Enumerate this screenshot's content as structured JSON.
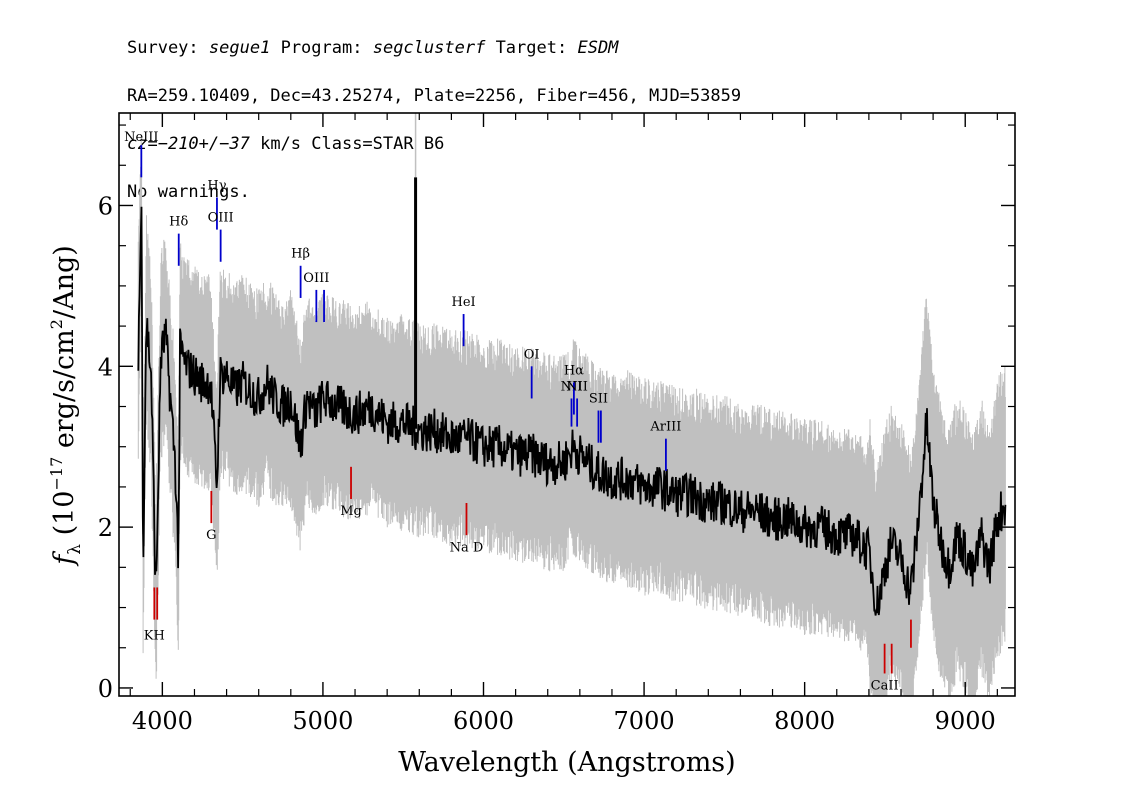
{
  "header": {
    "survey_label": "Survey:",
    "survey": "segue1",
    "program_label": "Program:",
    "program": "segclusterf",
    "target_label": "Target:",
    "target": "ESDM",
    "line2": "RA=259.10409, Dec=43.25274, Plate=2256, Fiber=456, MJD=53859",
    "cz_label": "cz=",
    "cz_value": "−210+/−37",
    "cz_rest": " km/s Class=STAR B6",
    "warnings": "No warnings."
  },
  "chart_data": {
    "type": "line",
    "title": "",
    "xlabel": "Wavelength (Angstroms)",
    "ylabel_prefix": "f",
    "ylabel_sub": "λ",
    "ylabel_main": " (10",
    "ylabel_exp": "−17",
    "ylabel_tail": " erg/s/cm",
    "ylabel_exp2": "2",
    "ylabel_end": "/Ang)",
    "xlim": [
      3730,
      9310
    ],
    "ylim": [
      -0.1,
      7.15
    ],
    "x_ticks": [
      4000,
      5000,
      6000,
      7000,
      8000,
      9000
    ],
    "x_tick_labels": [
      "4000",
      "5000",
      "6000",
      "7000",
      "8000",
      "9000"
    ],
    "y_ticks": [
      0,
      2,
      4,
      6
    ],
    "y_tick_labels": [
      "0",
      "2",
      "4",
      "6"
    ],
    "grid": false,
    "series": [
      {
        "role": "flux",
        "color": "#000000",
        "x": [
          3850,
          3870,
          3880,
          3900,
          3930,
          3960,
          3990,
          4020,
          4050,
          4080,
          4100,
          4110,
          4150,
          4200,
          4250,
          4300,
          4340,
          4360,
          4400,
          4450,
          4500,
          4550,
          4600,
          4650,
          4700,
          4750,
          4800,
          4860,
          4900,
          4950,
          5000,
          5100,
          5200,
          5300,
          5400,
          5500,
          5600,
          5700,
          5800,
          5900,
          6000,
          6100,
          6200,
          6300,
          6400,
          6500,
          6560,
          6600,
          6700,
          6800,
          6900,
          7000,
          7100,
          7200,
          7300,
          7400,
          7500,
          7600,
          7700,
          7800,
          7900,
          8000,
          8100,
          8200,
          8300,
          8400,
          8450,
          8500,
          8540,
          8600,
          8660,
          8700,
          8760,
          8800,
          8850,
          8900,
          8950,
          9000,
          9050,
          9100,
          9150,
          9200,
          9250
        ],
        "y": [
          4.2,
          6.0,
          1.5,
          4.6,
          3.9,
          1.1,
          4.1,
          4.4,
          3.6,
          2.8,
          1.6,
          4.2,
          4.0,
          3.9,
          3.8,
          3.8,
          2.5,
          3.9,
          3.9,
          3.7,
          3.8,
          3.7,
          3.6,
          3.8,
          3.6,
          3.5,
          3.6,
          3.0,
          3.6,
          3.4,
          3.6,
          3.5,
          3.4,
          3.5,
          3.3,
          3.3,
          3.2,
          3.2,
          3.1,
          3.1,
          3.0,
          3.0,
          2.9,
          2.9,
          2.8,
          2.8,
          3.0,
          2.9,
          2.7,
          2.6,
          2.6,
          2.5,
          2.5,
          2.4,
          2.4,
          2.3,
          2.3,
          2.2,
          2.2,
          2.1,
          2.1,
          2.0,
          2.0,
          1.9,
          1.9,
          1.7,
          1.0,
          1.5,
          1.8,
          1.6,
          1.2,
          1.9,
          3.3,
          2.3,
          1.8,
          1.5,
          1.9,
          1.7,
          1.4,
          1.9,
          1.5,
          2.1,
          2.3
        ]
      }
    ],
    "spike": {
      "x": 5577,
      "y": 6.35
    },
    "lines": [
      {
        "label": "NeIII",
        "x": 3869,
        "color": "#0000cc",
        "y0": 6.35,
        "y1": 6.75,
        "label_y": 6.8
      },
      {
        "label": "Hδ",
        "x": 4102,
        "color": "#0000cc",
        "y0": 5.25,
        "y1": 5.65,
        "label_y": 5.75
      },
      {
        "label": "Hγ",
        "x": 4340,
        "color": "#0000cc",
        "y0": 5.7,
        "y1": 6.1,
        "label_y": 6.2
      },
      {
        "label": "OIII",
        "x": 4363,
        "color": "#0000cc",
        "y0": 5.3,
        "y1": 5.7,
        "label_y": 5.8
      },
      {
        "label": "Hβ",
        "x": 4861,
        "color": "#0000cc",
        "y0": 4.85,
        "y1": 5.25,
        "label_y": 5.35
      },
      {
        "label": "OIII",
        "x": 4959,
        "color": "#0000cc",
        "y0": 4.55,
        "y1": 4.95,
        "label_y": 5.05
      },
      {
        "label": "",
        "x": 5007,
        "color": "#0000cc",
        "y0": 4.55,
        "y1": 4.95,
        "label_y": null
      },
      {
        "label": "HeI",
        "x": 5876,
        "color": "#0000cc",
        "y0": 4.25,
        "y1": 4.65,
        "label_y": 4.75
      },
      {
        "label": "OI",
        "x": 6300,
        "color": "#0000cc",
        "y0": 3.6,
        "y1": 4.0,
        "label_y": 4.1
      },
      {
        "label": "NII",
        "x": 6548,
        "color": "#0000cc",
        "y0": 3.25,
        "y1": 3.6,
        "label_y": 3.7
      },
      {
        "label": "Hα",
        "x": 6563,
        "color": "#0000cc",
        "y0": 3.4,
        "y1": 3.8,
        "label_y": 3.9
      },
      {
        "label": "NII",
        "x": 6583,
        "color": "#0000cc",
        "y0": 3.25,
        "y1": 3.6,
        "label_y": 3.7
      },
      {
        "label": "SII",
        "x": 6716,
        "color": "#0000cc",
        "y0": 3.05,
        "y1": 3.45,
        "label_y": 3.55
      },
      {
        "label": "",
        "x": 6731,
        "color": "#0000cc",
        "y0": 3.05,
        "y1": 3.45,
        "label_y": null
      },
      {
        "label": "ArIII",
        "x": 7136,
        "color": "#0000cc",
        "y0": 2.7,
        "y1": 3.1,
        "label_y": 3.2
      },
      {
        "label": "KH",
        "x": 3950,
        "color": "#cc0000",
        "y0": 0.85,
        "y1": 1.25,
        "label_y": 0.6
      },
      {
        "label": "",
        "x": 3968,
        "color": "#cc0000",
        "y0": 0.85,
        "y1": 1.25,
        "label_y": null
      },
      {
        "label": "G",
        "x": 4305,
        "color": "#cc0000",
        "y0": 2.05,
        "y1": 2.45,
        "label_y": 1.85
      },
      {
        "label": "Mg",
        "x": 5175,
        "color": "#cc0000",
        "y0": 2.35,
        "y1": 2.75,
        "label_y": 2.15
      },
      {
        "label": "Na D",
        "x": 5894,
        "color": "#cc0000",
        "y0": 1.9,
        "y1": 2.3,
        "label_y": 1.7
      },
      {
        "label": "CaII",
        "x": 8498,
        "color": "#cc0000",
        "y0": 0.18,
        "y1": 0.55,
        "label_y": -0.02
      },
      {
        "label": "",
        "x": 8542,
        "color": "#cc0000",
        "y0": 0.18,
        "y1": 0.55,
        "label_y": null
      },
      {
        "label": "",
        "x": 8662,
        "color": "#cc0000",
        "y0": 0.5,
        "y1": 0.85,
        "label_y": null
      }
    ],
    "colors": {
      "flux": "#000000",
      "noise": "#c0c0c0",
      "emission": "#0000cc",
      "absorption": "#cc0000"
    }
  }
}
